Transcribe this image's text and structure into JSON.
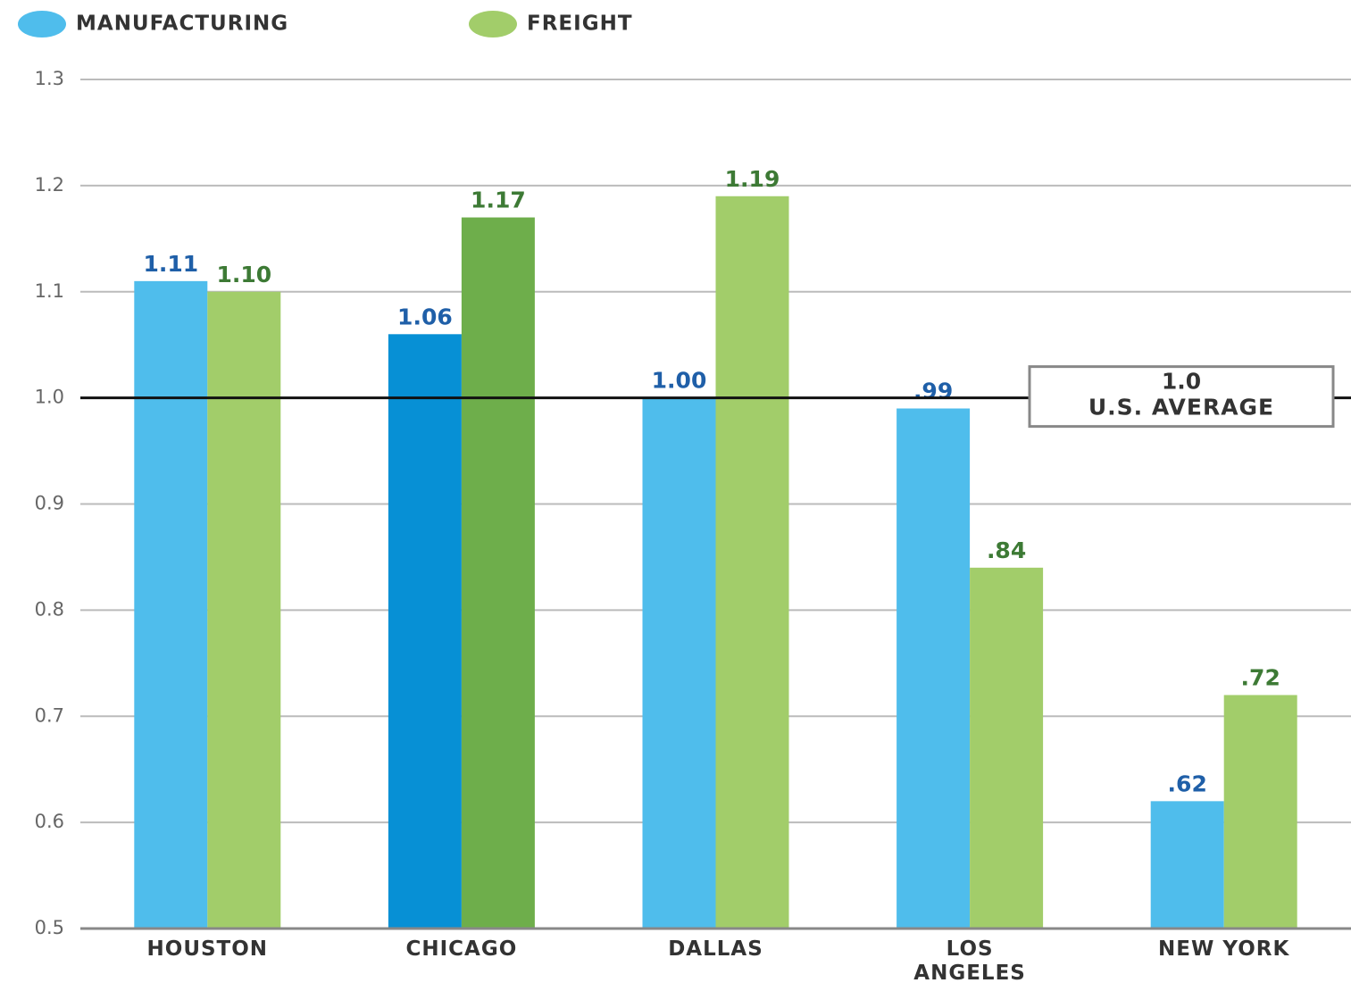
{
  "chart_data": {
    "type": "bar",
    "categories": [
      "HOUSTON",
      "CHICAGO",
      "DALLAS",
      "LOS\nANGELES",
      "NEW YORK"
    ],
    "series": [
      {
        "name": "MANUFACTURING",
        "color": "#4fbdec",
        "colors": [
          "#4fbdec",
          "#0790d5",
          "#4fbdec",
          "#4fbdec",
          "#4fbdec"
        ],
        "label_color": "#1f5fa8",
        "values": [
          1.11,
          1.06,
          1.0,
          0.99,
          0.62
        ],
        "value_labels": [
          "1.11",
          "1.06",
          "1.00",
          ".99",
          ".62"
        ]
      },
      {
        "name": "FREIGHT",
        "color": "#a2cd6a",
        "colors": [
          "#a2cd6a",
          "#6eae4b",
          "#a2cd6a",
          "#a2cd6a",
          "#a2cd6a"
        ],
        "label_color": "#3d7a35",
        "values": [
          1.1,
          1.17,
          1.19,
          0.84,
          0.72
        ],
        "value_labels": [
          "1.10",
          "1.17",
          "1.19",
          ".84",
          ".72"
        ]
      }
    ],
    "ylim": [
      0.5,
      1.3
    ],
    "yticks": [
      0.5,
      0.6,
      0.7,
      0.8,
      0.9,
      {
        "value": 1,
        "label": "1.0"
      },
      1.1,
      1.2,
      1.3
    ],
    "grid": true,
    "legend": "top-left",
    "reference_line": {
      "value": 1,
      "value_label": "1.0",
      "label": "U.S. AVERAGE"
    }
  }
}
